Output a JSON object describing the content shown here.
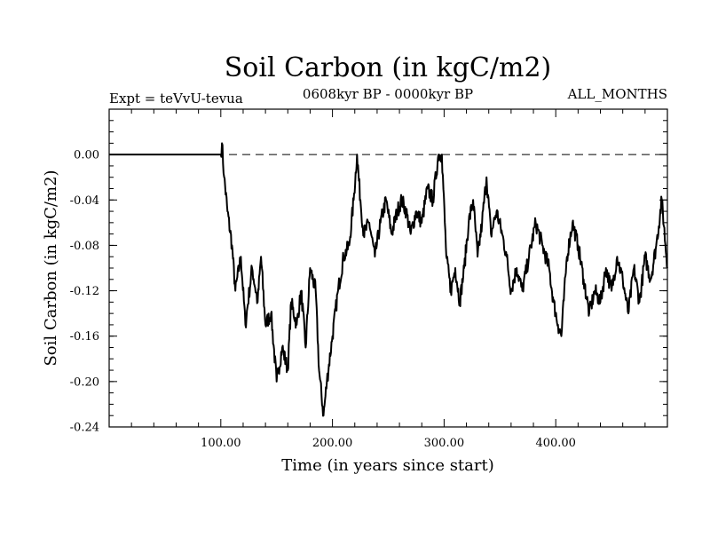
{
  "chart_data": {
    "type": "line",
    "title": "Soil Carbon (in kgC/m2)",
    "subtitle_left": "Expt = teVvU-tevua",
    "subtitle_center": "0608kyr BP - 0000kyr BP",
    "subtitle_right": "ALL_MONTHS",
    "xlabel": "Time (in years since start)",
    "ylabel": "Soil Carbon (in kgC/m2)",
    "xlim": [
      0,
      500
    ],
    "ylim": [
      -0.24,
      0.04
    ],
    "x_ticks": [
      100,
      200,
      300,
      400
    ],
    "x_tick_labels": [
      "100.00",
      "200.00",
      "300.00",
      "400.00"
    ],
    "y_ticks": [
      0.0,
      -0.04,
      -0.08,
      -0.12,
      -0.16,
      -0.2,
      -0.24
    ],
    "y_tick_labels": [
      "0.00",
      "-0.04",
      "-0.08",
      "-0.12",
      "-0.16",
      "-0.20",
      "-0.24"
    ],
    "reference_line": {
      "y": 0.0,
      "style": "dashed"
    },
    "series": [
      {
        "x": [
          0,
          50,
          100,
          101,
          103,
          106,
          110,
          113,
          118,
          122,
          128,
          133,
          136,
          140,
          145,
          150,
          155,
          160,
          163,
          168,
          172,
          176,
          180,
          185,
          188,
          192,
          195,
          200,
          205,
          210,
          215,
          219,
          222,
          225,
          228,
          233,
          238,
          243,
          248,
          253,
          258,
          262,
          266,
          270,
          275,
          280,
          285,
          290,
          295,
          298,
          302,
          306,
          310,
          314,
          318,
          322,
          326,
          330,
          334,
          338,
          342,
          347,
          352,
          356,
          360,
          365,
          370,
          376,
          382,
          388,
          394,
          398,
          402,
          405,
          410,
          415,
          420,
          425,
          430,
          435,
          440,
          445,
          450,
          455,
          460,
          465,
          470,
          475,
          480,
          485,
          490,
          495,
          500
        ],
        "y": [
          0.0,
          0.0,
          0.0,
          0.01,
          -0.02,
          -0.05,
          -0.08,
          -0.12,
          -0.09,
          -0.15,
          -0.1,
          -0.13,
          -0.09,
          -0.15,
          -0.14,
          -0.2,
          -0.17,
          -0.19,
          -0.13,
          -0.15,
          -0.12,
          -0.17,
          -0.1,
          -0.12,
          -0.19,
          -0.23,
          -0.2,
          -0.16,
          -0.12,
          -0.09,
          -0.08,
          -0.04,
          0.0,
          -0.04,
          -0.07,
          -0.06,
          -0.09,
          -0.06,
          -0.04,
          -0.07,
          -0.05,
          -0.04,
          -0.05,
          -0.07,
          -0.05,
          -0.06,
          -0.03,
          -0.04,
          0.0,
          0.0,
          -0.09,
          -0.12,
          -0.1,
          -0.13,
          -0.1,
          -0.06,
          -0.04,
          -0.09,
          -0.06,
          -0.02,
          -0.07,
          -0.05,
          -0.07,
          -0.09,
          -0.12,
          -0.1,
          -0.12,
          -0.09,
          -0.06,
          -0.08,
          -0.1,
          -0.13,
          -0.15,
          -0.16,
          -0.09,
          -0.06,
          -0.08,
          -0.11,
          -0.14,
          -0.12,
          -0.13,
          -0.1,
          -0.12,
          -0.09,
          -0.11,
          -0.14,
          -0.1,
          -0.13,
          -0.09,
          -0.11,
          -0.08,
          -0.04,
          -0.1
        ]
      }
    ]
  }
}
